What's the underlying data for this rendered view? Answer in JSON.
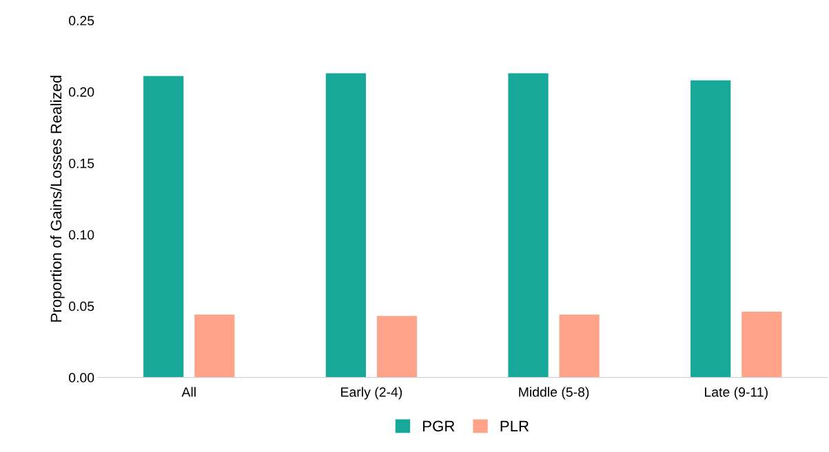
{
  "chart_data": {
    "type": "bar",
    "ylabel": "Proportion of Gains/Losses Realized",
    "categories": [
      "All",
      "Early (2-4)",
      "Middle (5-8)",
      "Late (9-11)"
    ],
    "series": [
      {
        "name": "PGR",
        "color": "#17a89a",
        "values": [
          0.211,
          0.213,
          0.213,
          0.208
        ]
      },
      {
        "name": "PLR",
        "color": "#ffa38a",
        "values": [
          0.044,
          0.043,
          0.044,
          0.046
        ]
      }
    ],
    "ylim": [
      0,
      0.25
    ],
    "yticks": [
      {
        "value": 0,
        "label": "0.00"
      },
      {
        "value": 0.05,
        "label": "0.05"
      },
      {
        "value": 0.1,
        "label": "0.10"
      },
      {
        "value": 0.15,
        "label": "0.15"
      },
      {
        "value": 0.2,
        "label": "0.20"
      },
      {
        "value": 0.25,
        "label": "0.25"
      }
    ],
    "grid": false,
    "legend": "bottom"
  }
}
